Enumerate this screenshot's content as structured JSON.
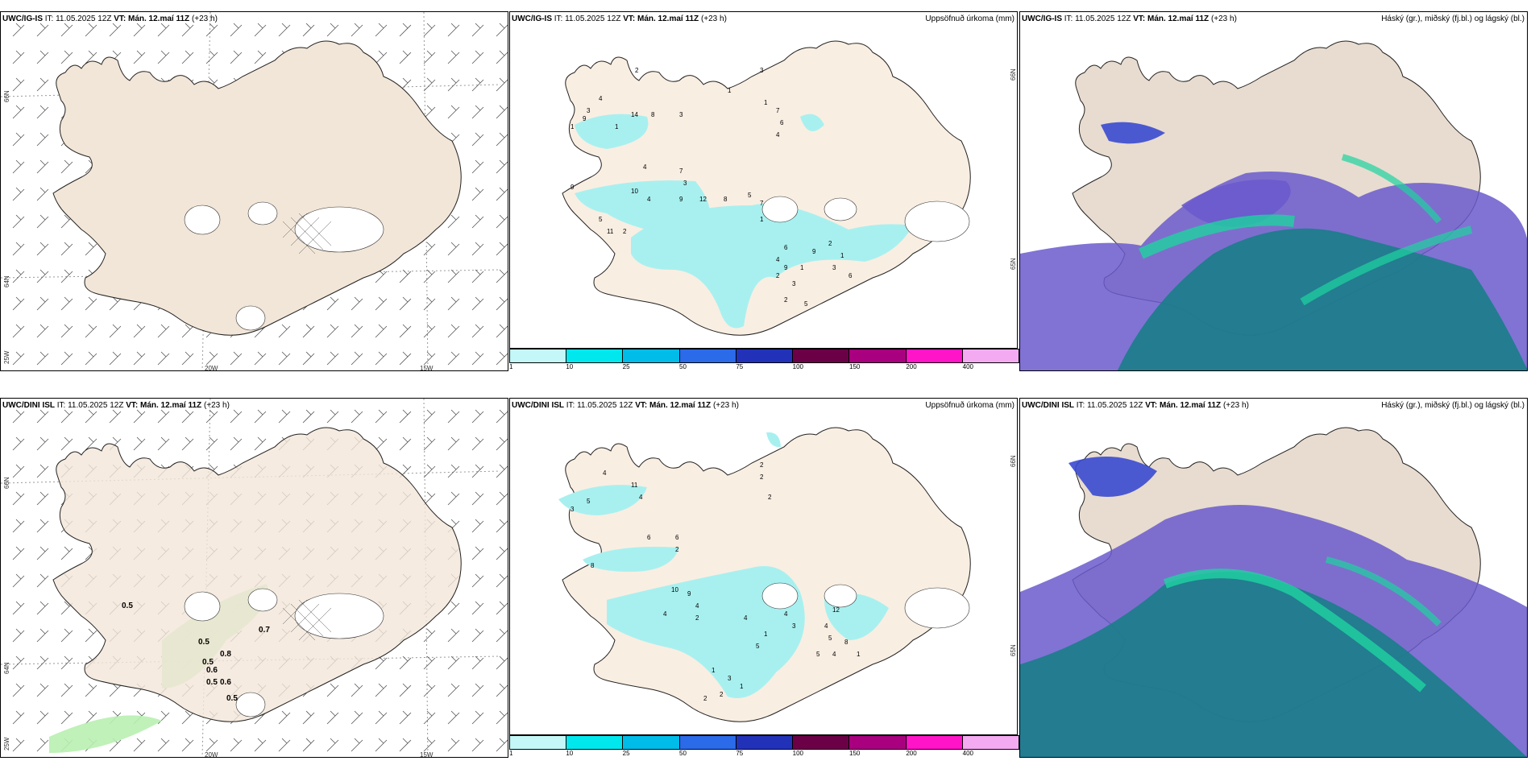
{
  "panels": {
    "igis_wind": {
      "model": "UWC/IG-IS",
      "it": "IT: 11.05.2025 12Z",
      "vt_label": "VT:",
      "vt": "Mán. 12.maí 11Z",
      "lead": "(+23 h)"
    },
    "igis_precip": {
      "model": "UWC/IG-IS",
      "it": "IT: 11.05.2025 12Z",
      "vt_label": "VT:",
      "vt": "Mán. 12.maí 11Z",
      "lead": "(+23 h)",
      "right_title": "Uppsöfnuð úrkoma (mm)"
    },
    "igis_cloud": {
      "model": "UWC/IG-IS",
      "it": "IT: 11.05.2025 12Z",
      "vt_label": "VT:",
      "vt": "Mán. 12.maí 11Z",
      "lead": "(+23 h)",
      "right_title": "Háský (gr.), miðský (fj.bl.) og lágský (bl.)"
    },
    "dini_wind": {
      "model": "UWC/DINI ISL",
      "it": "IT: 11.05.2025 12Z",
      "vt_label": "VT:",
      "vt": "Mán. 12.maí 11Z",
      "lead": "(+23 h)"
    },
    "dini_precip": {
      "model": "UWC/DINI ISL",
      "it": "IT: 11.05.2025 12Z",
      "vt_label": "VT:",
      "vt": "Mán. 12.maí 11Z",
      "lead": "(+23 h)",
      "right_title": "Uppsöfnuð úrkoma (mm)"
    },
    "dini_cloud": {
      "model": "UWC/DINI ISL",
      "it": "IT: 11.05.2025 12Z",
      "vt_label": "VT:",
      "vt": "Mán. 12.maí 11Z",
      "lead": "(+23 h)",
      "right_title": "Háský (gr.), miðský (fj.bl.) og lágský (bl.)"
    }
  },
  "axes": {
    "lon_20": "20W",
    "lon_15": "15W",
    "lat_66": "66N",
    "lat_64": "64N",
    "lat_25": "25W",
    "lat_65": "65N"
  },
  "colorbar": {
    "labels": [
      "1",
      "10",
      "25",
      "50",
      "75",
      "100",
      "150",
      "200",
      "400"
    ],
    "colors": [
      "#c4f7f7",
      "#00e8ee",
      "#00bce8",
      "#2b6ae8",
      "#2232b8",
      "#6c0047",
      "#a8007e",
      "#ff14c8",
      "#f4aaf0"
    ]
  },
  "precip_top_values": [
    "2",
    "4",
    "3",
    "9",
    "14",
    "8",
    "1",
    "1",
    "3",
    "1",
    "3",
    "1",
    "7",
    "6",
    "4",
    "4",
    "7",
    "3",
    "9",
    "10",
    "4",
    "9",
    "12",
    "8",
    "5",
    "7",
    "1",
    "6",
    "4",
    "2",
    "9",
    "3",
    "1",
    "2",
    "5",
    "9",
    "2",
    "1",
    "3",
    "6",
    "5",
    "11",
    "2"
  ],
  "precip_bot_values": [
    "4",
    "11",
    "5",
    "3",
    "2",
    "2",
    "2",
    "4",
    "6",
    "6",
    "2",
    "8",
    "10",
    "9",
    "4",
    "4",
    "2",
    "4",
    "1",
    "5",
    "12",
    "4",
    "3",
    "4",
    "5",
    "8",
    "1",
    "4",
    "5",
    "1",
    "3",
    "1",
    "2",
    "2"
  ],
  "wind_bot_values": [
    "0.5",
    "0.5",
    "0.7",
    "0.5",
    "0.8",
    "0.6",
    "0.5",
    "0.6",
    "0.5"
  ],
  "colors": {
    "land": "#f2e6d8",
    "sea": "#ffffff",
    "precip_light": "#a8f0f0",
    "cloud_high": "#1a7d8a",
    "cloud_mid": "#6a5acd",
    "cloud_low": "#1ed3a0"
  }
}
